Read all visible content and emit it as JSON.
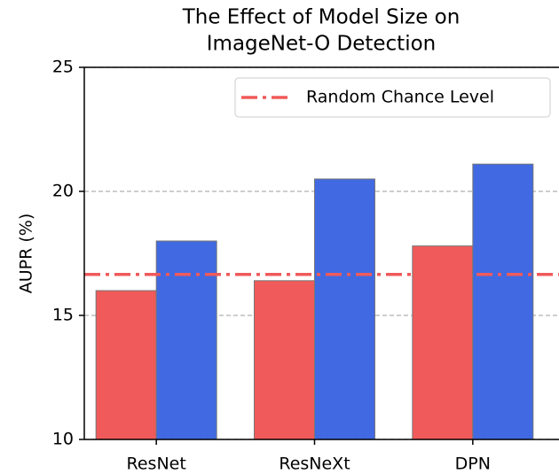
{
  "chart_data": {
    "type": "bar",
    "title": [
      "The Effect of Model Size on",
      "ImageNet-O Detection"
    ],
    "ylabel": "AUPR (%)",
    "categories": [
      "ResNet",
      "ResNeXt",
      "DPN"
    ],
    "series": [
      {
        "color": "#f05a5a",
        "values": [
          16.0,
          16.4,
          17.8
        ]
      },
      {
        "color": "#4169e1",
        "values": [
          18.0,
          20.5,
          21.1
        ]
      }
    ],
    "hline": {
      "label": "Random Chance Level",
      "value": 16.65,
      "color": "#f05a5a"
    },
    "ylim": [
      10,
      25
    ],
    "yticks": [
      10,
      15,
      20,
      25
    ],
    "grid": true,
    "legend": "upper right"
  }
}
